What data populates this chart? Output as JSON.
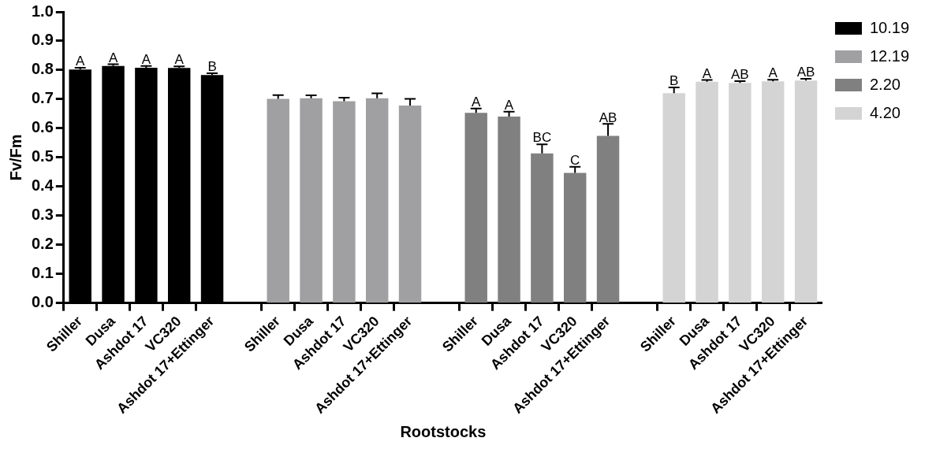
{
  "chart_data": {
    "type": "bar",
    "xlabel": "Rootstocks",
    "ylabel": "Fv/Fm",
    "categories": [
      "Shiller",
      "Dusa",
      "Ashdot 17",
      "VC320",
      "Ashdot 17+Ettinger",
      null,
      "Shiller",
      "Dusa",
      "Ashdot 17",
      "VC320",
      "Ashdot 17+Ettinger",
      null,
      "Shiller",
      "Dusa",
      "Ashdot 17",
      "VC320",
      "Ashdot 17+Ettinger",
      null,
      "Shiller",
      "Dusa",
      "Ashdot 17",
      "VC320",
      "Ashdot 17+Ettinger"
    ],
    "series": [
      {
        "name": "10.19",
        "color": "#000000",
        "values": [
          0.802,
          0.814,
          0.808,
          0.807,
          0.783,
          null,
          null,
          null,
          null,
          null,
          null,
          null,
          null,
          null,
          null,
          null,
          null,
          null,
          null,
          null,
          null,
          null,
          null
        ],
        "errors": [
          0.006,
          0.006,
          0.006,
          0.006,
          0.006,
          null,
          null,
          null,
          null,
          null,
          null,
          null,
          null,
          null,
          null,
          null,
          null,
          null,
          null,
          null,
          null,
          null,
          null
        ],
        "value_labels": [
          "A",
          "A",
          "A",
          "A",
          "B",
          null,
          null,
          null,
          null,
          null,
          null,
          null,
          null,
          null,
          null,
          null,
          null,
          null,
          null,
          null,
          null,
          null,
          null
        ]
      },
      {
        "name": "12.19",
        "color": "#a0a0a2",
        "values": [
          null,
          null,
          null,
          null,
          null,
          null,
          0.701,
          0.703,
          0.693,
          0.703,
          0.678,
          null,
          null,
          null,
          null,
          null,
          null,
          null,
          null,
          null,
          null,
          null,
          null
        ],
        "errors": [
          null,
          null,
          null,
          null,
          null,
          null,
          0.013,
          0.01,
          0.012,
          0.017,
          0.023,
          null,
          null,
          null,
          null,
          null,
          null,
          null,
          null,
          null,
          null,
          null,
          null
        ]
      },
      {
        "name": "2.20",
        "color": "#808080",
        "values": [
          null,
          null,
          null,
          null,
          null,
          null,
          null,
          null,
          null,
          null,
          null,
          null,
          0.653,
          0.64,
          0.514,
          0.447,
          0.574,
          null,
          null,
          null,
          null,
          null,
          null
        ],
        "errors": [
          null,
          null,
          null,
          null,
          null,
          null,
          null,
          null,
          null,
          null,
          null,
          null,
          0.015,
          0.017,
          0.031,
          0.021,
          0.041,
          null,
          null,
          null,
          null,
          null,
          null
        ],
        "value_labels": [
          null,
          null,
          null,
          null,
          null,
          null,
          null,
          null,
          null,
          null,
          null,
          null,
          "A",
          "A",
          "BC",
          "C",
          "AB",
          null,
          null,
          null,
          null,
          null,
          null
        ]
      },
      {
        "name": "4.20",
        "color": "#d4d4d4",
        "values": [
          null,
          null,
          null,
          null,
          null,
          null,
          null,
          null,
          null,
          null,
          null,
          null,
          null,
          null,
          null,
          null,
          null,
          null,
          0.721,
          0.76,
          0.756,
          0.761,
          0.764
        ],
        "errors": [
          null,
          null,
          null,
          null,
          null,
          null,
          null,
          null,
          null,
          null,
          null,
          null,
          null,
          null,
          null,
          null,
          null,
          null,
          0.019,
          0.006,
          0.006,
          0.006,
          0.006
        ],
        "value_labels": [
          null,
          null,
          null,
          null,
          null,
          null,
          null,
          null,
          null,
          null,
          null,
          null,
          null,
          null,
          null,
          null,
          null,
          null,
          "B",
          "A",
          "AB",
          "A",
          "AB"
        ]
      }
    ],
    "ylim": [
      0,
      1
    ],
    "yticks": [
      {
        "value": 0,
        "label": "0.0"
      },
      0.1,
      0.2,
      0.3,
      0.4,
      0.5,
      0.6,
      0.7,
      0.8,
      0.9,
      {
        "value": 1,
        "label": "1.0"
      }
    ],
    "grid": false,
    "legend": "right"
  }
}
